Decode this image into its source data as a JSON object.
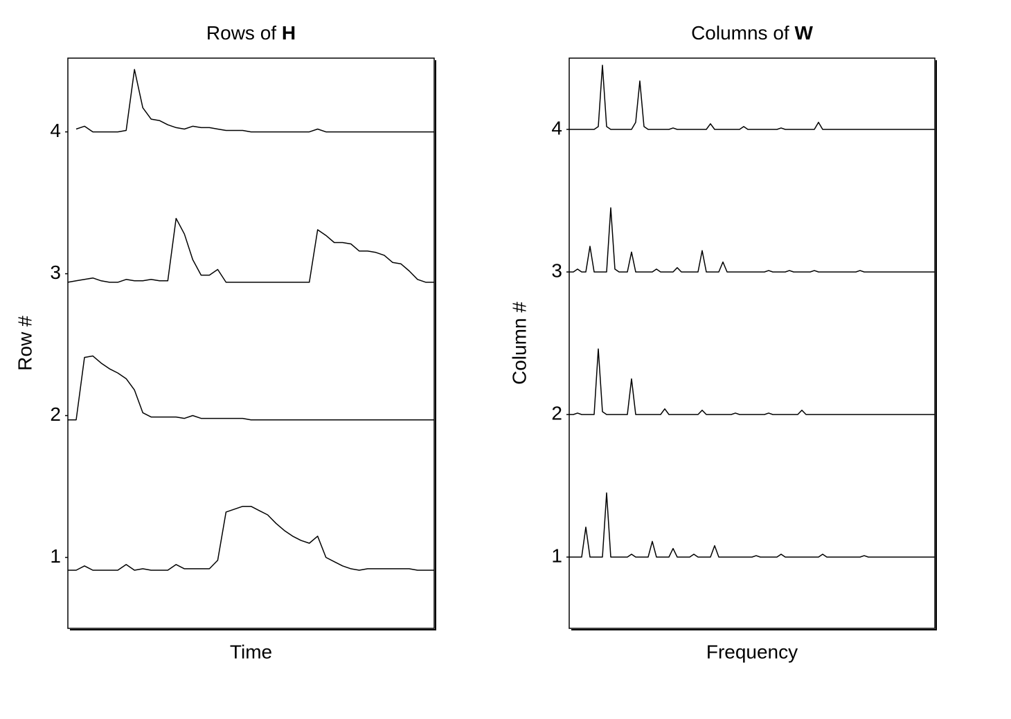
{
  "chart_data": [
    {
      "type": "line",
      "title": "Rows of H",
      "xlabel": "Time",
      "ylabel": "Row #",
      "ylim": [
        0.5,
        4.52
      ],
      "yticks": [
        1,
        2,
        3,
        4
      ],
      "series": [
        {
          "color": "#000000",
          "values": [
            0.91,
            0.91,
            0.94,
            0.91,
            0.91,
            0.91,
            0.91,
            0.95,
            0.91,
            0.92,
            0.91,
            0.91,
            0.91,
            0.95,
            0.92,
            0.92,
            0.92,
            0.92,
            0.98,
            1.32,
            1.34,
            1.36,
            1.36,
            1.33,
            1.3,
            1.24,
            1.19,
            1.15,
            1.12,
            1.1,
            1.15,
            1.0,
            0.97,
            0.94,
            0.92,
            0.91,
            0.92,
            0.92,
            0.92,
            0.92,
            0.92,
            0.92,
            0.91,
            0.91,
            0.91
          ]
        },
        {
          "color": "#000000",
          "values": [
            1.97,
            1.97,
            2.41,
            2.42,
            2.37,
            2.33,
            2.3,
            2.26,
            2.18,
            2.02,
            1.99,
            1.99,
            1.99,
            1.99,
            1.98,
            2.0,
            1.98,
            1.98,
            1.98,
            1.98,
            1.98,
            1.98,
            1.97,
            1.97,
            1.97,
            1.97,
            1.97,
            1.97,
            1.97,
            1.97,
            1.97,
            1.97,
            1.97,
            1.97,
            1.97,
            1.97,
            1.97,
            1.97,
            1.97,
            1.97,
            1.97,
            1.97,
            1.97,
            1.97,
            1.97
          ]
        },
        {
          "color": "#000000",
          "values": [
            2.94,
            2.95,
            2.96,
            2.97,
            2.95,
            2.94,
            2.94,
            2.96,
            2.95,
            2.95,
            2.96,
            2.95,
            2.95,
            3.39,
            3.28,
            3.1,
            2.99,
            2.99,
            3.03,
            2.94,
            2.94,
            2.94,
            2.94,
            2.94,
            2.94,
            2.94,
            2.94,
            2.94,
            2.94,
            2.94,
            3.31,
            3.27,
            3.22,
            3.22,
            3.21,
            3.16,
            3.16,
            3.15,
            3.13,
            3.08,
            3.07,
            3.02,
            2.96,
            2.94,
            2.94
          ]
        },
        {
          "color": "#000000",
          "values": [
            null,
            4.02,
            4.04,
            4,
            4,
            4,
            4,
            4.01,
            4.44,
            4.17,
            4.09,
            4.08,
            4.05,
            4.03,
            4.02,
            4.04,
            4.03,
            4.03,
            4.02,
            4.01,
            4.01,
            4.01,
            4,
            4,
            4,
            4,
            4,
            4,
            4,
            4,
            4.02,
            4,
            4,
            4,
            4,
            4,
            4,
            4,
            4,
            4,
            4,
            4,
            4,
            4,
            4
          ]
        }
      ]
    },
    {
      "type": "line",
      "title": "Columns of W",
      "xlabel": "Frequency",
      "ylabel": "Column #",
      "ylim": [
        0.5,
        4.5
      ],
      "yticks": [
        1,
        2,
        3,
        4
      ],
      "series": [
        {
          "color": "#000000",
          "values": [
            1,
            1,
            1,
            1,
            1.21,
            1,
            1,
            1,
            1,
            1.45,
            1,
            1,
            1,
            1,
            1,
            1.02,
            1,
            1,
            1,
            1,
            1.11,
            1,
            1,
            1,
            1,
            1.06,
            1,
            1,
            1,
            1,
            1.02,
            1,
            1,
            1,
            1,
            1.08,
            1,
            1,
            1,
            1,
            1,
            1,
            1,
            1,
            1,
            1.01,
            1,
            1,
            1,
            1,
            1,
            1.02,
            1,
            1,
            1,
            1,
            1,
            1,
            1,
            1,
            1,
            1.02,
            1,
            1,
            1,
            1,
            1,
            1,
            1,
            1,
            1,
            1.01,
            1,
            1,
            1,
            1,
            1,
            1,
            1,
            1,
            1,
            1,
            1,
            1,
            1,
            1,
            1,
            1,
            1
          ]
        },
        {
          "color": "#000000",
          "values": [
            2,
            2,
            2.01,
            2,
            2,
            2,
            2,
            2.46,
            2.02,
            2,
            2,
            2,
            2,
            2,
            2,
            2.25,
            2,
            2,
            2,
            2,
            2,
            2,
            2,
            2.04,
            2,
            2,
            2,
            2,
            2,
            2,
            2,
            2,
            2.03,
            2,
            2,
            2,
            2,
            2,
            2,
            2,
            2.01,
            2,
            2,
            2,
            2,
            2,
            2,
            2,
            2.01,
            2,
            2,
            2,
            2,
            2,
            2,
            2,
            2.03,
            2,
            2,
            2,
            2,
            2,
            2,
            2,
            2,
            2,
            2,
            2,
            2,
            2,
            2,
            2,
            2,
            2,
            2,
            2,
            2,
            2,
            2,
            2,
            2,
            2,
            2,
            2,
            2,
            2,
            2,
            2,
            2
          ]
        },
        {
          "color": "#000000",
          "values": [
            3,
            3,
            3.02,
            3,
            3,
            3.18,
            3,
            3,
            3,
            3,
            3.45,
            3.02,
            3,
            3,
            3,
            3.14,
            3,
            3,
            3,
            3,
            3,
            3.02,
            3,
            3,
            3,
            3,
            3.03,
            3,
            3,
            3,
            3,
            3,
            3.15,
            3,
            3,
            3,
            3,
            3.07,
            3,
            3,
            3,
            3,
            3,
            3,
            3,
            3,
            3,
            3,
            3.01,
            3,
            3,
            3,
            3,
            3.01,
            3,
            3,
            3,
            3,
            3,
            3.01,
            3,
            3,
            3,
            3,
            3,
            3,
            3,
            3,
            3,
            3,
            3.01,
            3,
            3,
            3,
            3,
            3,
            3,
            3,
            3,
            3,
            3,
            3,
            3,
            3,
            3,
            3,
            3,
            3,
            3
          ]
        },
        {
          "color": "#000000",
          "values": [
            4,
            4,
            4,
            4,
            4,
            4,
            4,
            4.02,
            4.45,
            4.02,
            4,
            4,
            4,
            4,
            4,
            4,
            4.05,
            4.34,
            4.02,
            4,
            4,
            4,
            4,
            4,
            4,
            4.01,
            4,
            4,
            4,
            4,
            4,
            4,
            4,
            4,
            4.04,
            4,
            4,
            4,
            4,
            4,
            4,
            4,
            4.02,
            4,
            4,
            4,
            4,
            4,
            4,
            4,
            4,
            4.01,
            4,
            4,
            4,
            4,
            4,
            4,
            4,
            4,
            4.05,
            4,
            4,
            4,
            4,
            4,
            4,
            4,
            4,
            4,
            4,
            4,
            4,
            4,
            4,
            4,
            4,
            4,
            4,
            4,
            4,
            4,
            4,
            4,
            4,
            4,
            4,
            4,
            4
          ]
        }
      ]
    }
  ]
}
